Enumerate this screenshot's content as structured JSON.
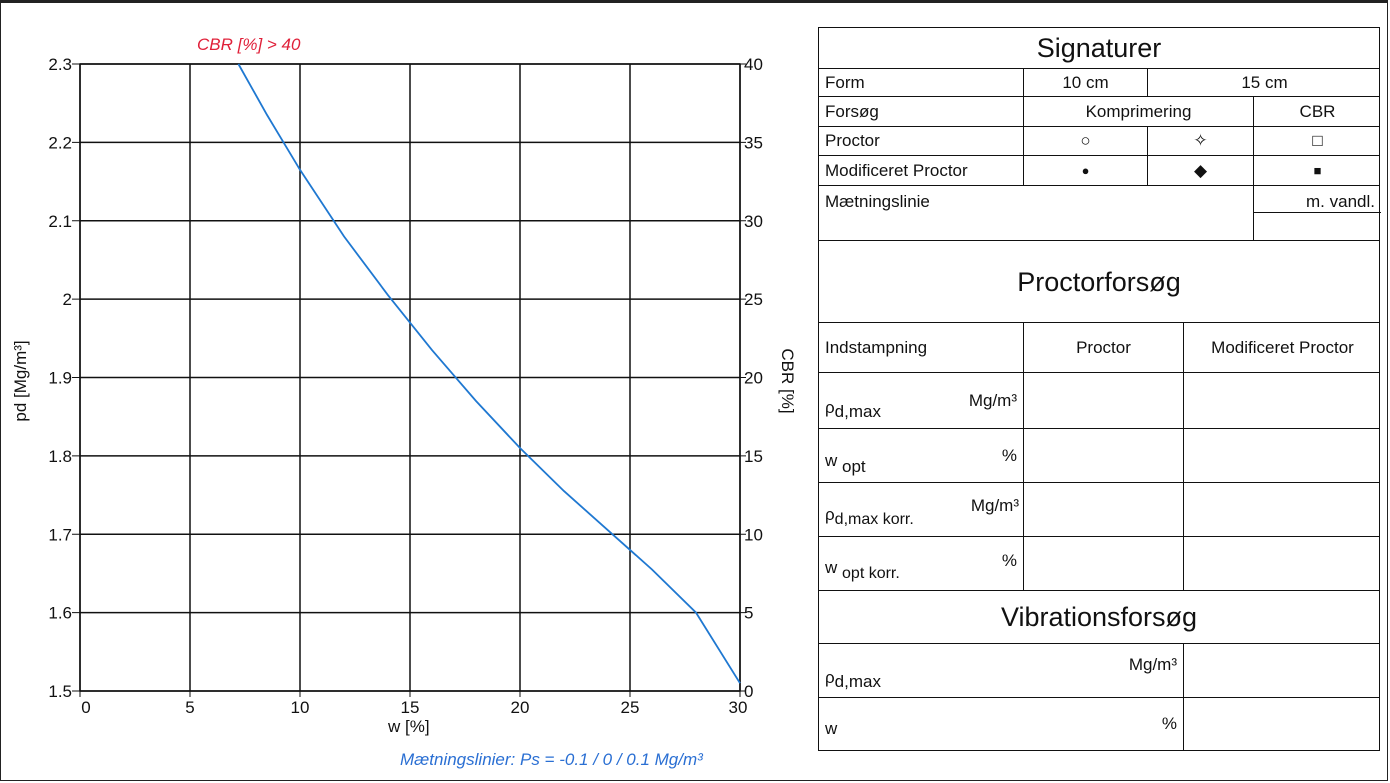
{
  "chart_data": {
    "type": "line",
    "xlabel": "w [%]",
    "ylabel": "pd [Mg/m³]",
    "y2label": "CBR [%]",
    "xlim": [
      0,
      30
    ],
    "ylim": [
      1.5,
      2.3
    ],
    "y2lim": [
      0,
      40
    ],
    "x_ticks": [
      "0",
      "5",
      "10",
      "15",
      "20",
      "25",
      "30"
    ],
    "y_ticks": [
      "1.5",
      "1.6",
      "1.7",
      "1.8",
      "1.9",
      "2",
      "2.1",
      "2.2",
      "2.3"
    ],
    "y2_ticks": [
      "0",
      "5",
      "10",
      "15",
      "20",
      "25",
      "30",
      "35",
      "40"
    ],
    "grid": true,
    "annotation_top": "CBR [%] > 40",
    "annotation_bottom": "Mætningslinier: Ps = -0.1 / 0 / 0.1 Mg/m³",
    "series": [
      {
        "color": "#1f78d1",
        "x": [
          7.2,
          8.5,
          10.0,
          12.0,
          14.0,
          16.0,
          18.0,
          20.0,
          22.0,
          24.0,
          26.0,
          28.0,
          30.0
        ],
        "y": [
          2.3,
          2.235,
          2.165,
          2.08,
          2.005,
          1.935,
          1.87,
          1.81,
          1.755,
          1.705,
          1.655,
          1.6,
          1.51
        ]
      }
    ]
  },
  "table": {
    "signaturer_title": "Signaturer",
    "form_label": "Form",
    "form_10": "10 cm",
    "form_15": "15 cm",
    "forsog_label": "Forsøg",
    "komprimering": "Komprimering",
    "cbr": "CBR",
    "proctor_label": "Proctor",
    "proctor_sym_1": "○",
    "proctor_sym_2": "✧",
    "proctor_sym_3": "□",
    "mod_proctor_label": "Modificeret Proctor",
    "mod_sym_1": "●",
    "mod_sym_2": "◆",
    "mod_sym_3": "■",
    "maetningslinie": "Mætningslinie",
    "m_vandl": "m. vandl.",
    "proctorforsog_title": "Proctorforsøg",
    "indstampning": "Indstampning",
    "proctor_col": "Proctor",
    "mod_proctor_col": "Modificeret Proctor",
    "rho_d": "ρ",
    "d_max": "d,max",
    "unit_mgm3": "Mg/m³",
    "w_sym": "w",
    "opt": "opt",
    "unit_pct": "%",
    "d_max_korr": "d,max korr.",
    "opt_korr": "opt korr.",
    "vibrationsforsog_title": "Vibrationsforsøg",
    "vib_w": "w"
  }
}
